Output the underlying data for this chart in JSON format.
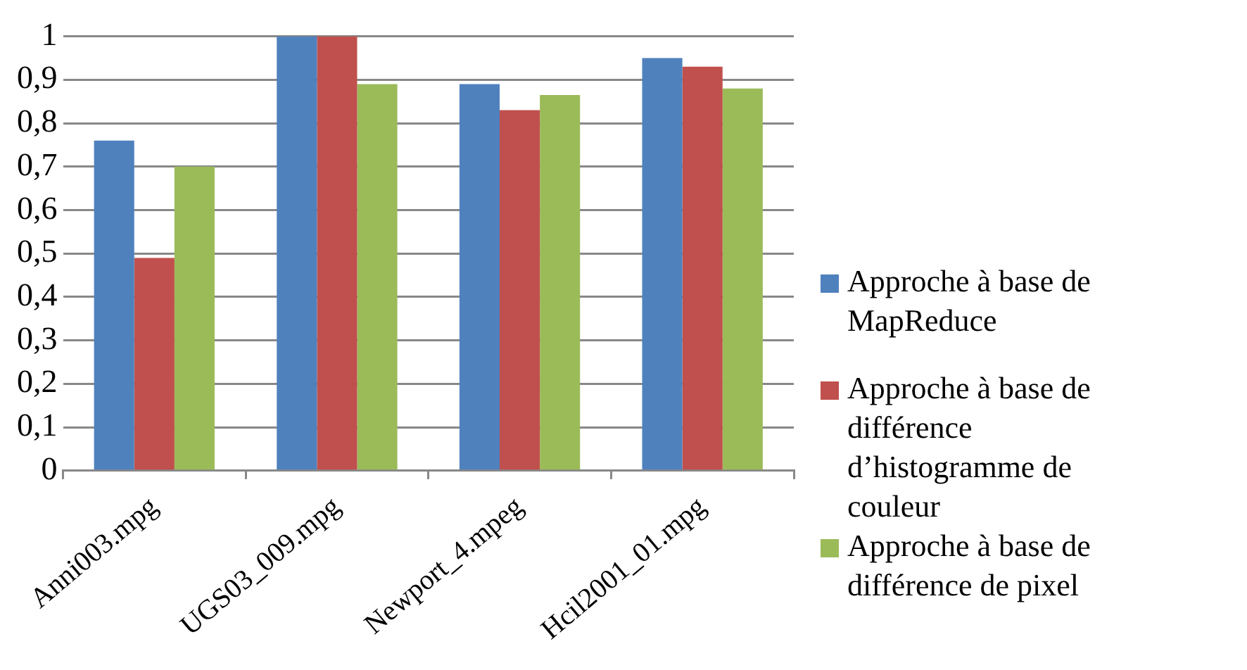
{
  "chart_data": {
    "type": "bar",
    "categories": [
      "Anni003.mpg",
      "UGS03_009.mpg",
      "Newport_4.mpeg",
      "Hcil2001_01.mpg"
    ],
    "series": [
      {
        "name": "Approche à base de MapReduce",
        "color": "#4f81bd",
        "values": [
          0.76,
          1,
          0.89,
          0.95
        ]
      },
      {
        "name": "Approche à base de différence d’histogramme de couleur",
        "color": "#c0504d",
        "values": [
          0.49,
          1,
          0.83,
          0.93
        ]
      },
      {
        "name": "Approche à base de différence de pixel",
        "color": "#9bbb59",
        "values": [
          0.7,
          0.89,
          0.865,
          0.88
        ]
      }
    ],
    "ylim": [
      0,
      1
    ],
    "yticks": [
      0,
      {
        "value": 0.1,
        "label": "0,1"
      },
      {
        "value": 0.2,
        "label": "0,2"
      },
      {
        "value": 0.3,
        "label": "0,3"
      },
      {
        "value": 0.4,
        "label": "0,4"
      },
      {
        "value": 0.5,
        "label": "0,5"
      },
      {
        "value": 0.6,
        "label": "0,6"
      },
      {
        "value": 0.7,
        "label": "0,7"
      },
      {
        "value": 0.8,
        "label": "0,8"
      },
      {
        "value": 0.9,
        "label": "0,9"
      },
      1
    ],
    "grid": "y",
    "legend": "right"
  }
}
